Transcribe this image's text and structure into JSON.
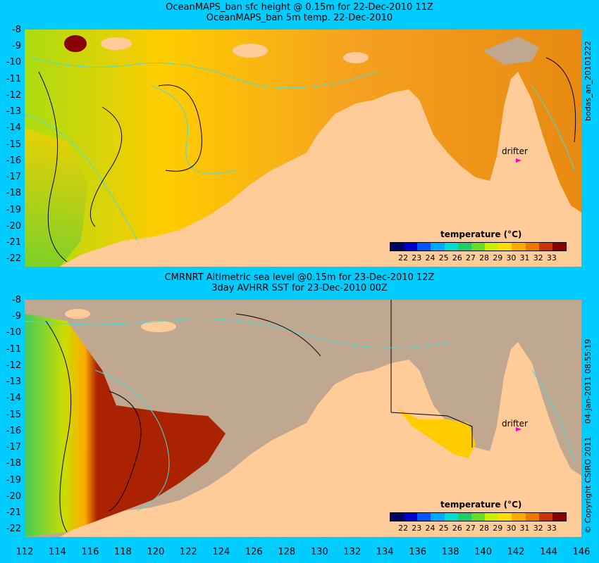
{
  "top_panel": {
    "title_line1": "OceanMAPS_ban sfc height @ 0.15m for 22-Dec-2010 11Z",
    "title_line2": "OceanMAPS_ban 5m temp. 22-Dec-2010",
    "side_label": "bodas_an_20101222",
    "drifter_label": "drifter",
    "legend_title": "temperature (°C)"
  },
  "bottom_panel": {
    "title_line1": "CMRNRT Altimetric sea level  @0.15m  for 23-Dec-2010 12Z",
    "title_line2": "3day AVHRR SST for 23-Dec-2010 00Z",
    "side_label_date": "04-Jan-2011 08:55:19",
    "side_label_copyright": "© Copyright CSIRO 2011",
    "drifter_label": "drifter",
    "legend_title": "temperature (°C)"
  },
  "colorbar": {
    "ticks": [
      "22",
      "23",
      "24",
      "25",
      "26",
      "27",
      "28",
      "29",
      "30",
      "31",
      "32",
      "33"
    ],
    "colors": [
      "#000066",
      "#0000cc",
      "#0055ff",
      "#00aaff",
      "#00ddcc",
      "#22cc66",
      "#66dd22",
      "#ccee00",
      "#ffdd00",
      "#ffaa00",
      "#ee7700",
      "#cc3300",
      "#880000"
    ]
  },
  "axes": {
    "lat_labels": [
      "-8",
      "-9",
      "-10",
      "-11",
      "-12",
      "-13",
      "-14",
      "-15",
      "-16",
      "-17",
      "-18",
      "-19",
      "-20",
      "-21",
      "-22"
    ],
    "lon_labels": [
      "112",
      "114",
      "116",
      "118",
      "120",
      "122",
      "124",
      "126",
      "128",
      "130",
      "132",
      "134",
      "136",
      "138",
      "140",
      "142",
      "144",
      "146"
    ]
  },
  "colors": {
    "background": "#00ccff",
    "land": "#ffcc99",
    "no_data": "#c0a890",
    "contour_cyan": "#44dddd"
  }
}
